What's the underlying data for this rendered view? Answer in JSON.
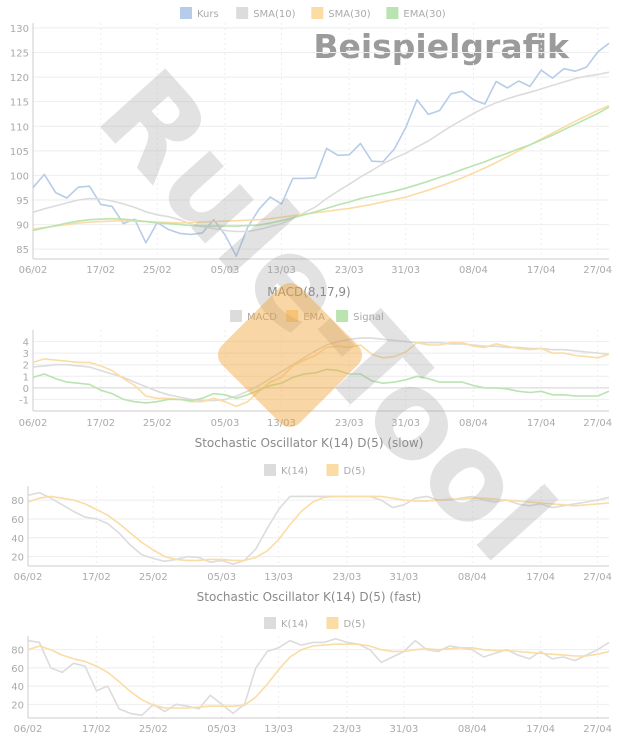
{
  "watermark": {
    "text": "Rule-Tool",
    "opacity": 0.35
  },
  "dates": [
    "06/02",
    "17/02",
    "25/02",
    "05/03",
    "13/03",
    "23/03",
    "31/03",
    "08/04",
    "17/04",
    "27/04"
  ],
  "colors": {
    "kurs": "#b7cce8",
    "sma10": "#dcdcdc",
    "sma30": "#fbdca5",
    "ema30": "#b9e4b0",
    "grid": "#eeeeee",
    "axis": "#cccccc",
    "tick": "#aaaaaa"
  },
  "chart_data": [
    {
      "type": "line",
      "title": "Beispielgrafik",
      "ylim": [
        83,
        131
      ],
      "yticks": [
        85,
        90,
        95,
        100,
        105,
        110,
        115,
        120,
        125,
        130
      ],
      "x_ticks": [
        "06/02",
        "17/02",
        "25/02",
        "05/03",
        "13/03",
        "23/03",
        "31/03",
        "08/04",
        "17/04",
        "27/04"
      ],
      "legend": "top-center",
      "series": [
        {
          "name": "Kurs",
          "color": "#b7cce8",
          "values": [
            97.5,
            100.2,
            96.5,
            95.4,
            97.6,
            97.8,
            94.1,
            93.7,
            90.2,
            91.1,
            86.3,
            90.4,
            89.0,
            88.2,
            88.0,
            88.3,
            91.0,
            87.9,
            83.6,
            89.4,
            93.1,
            95.6,
            94.2,
            99.4,
            99.4,
            99.5,
            105.5,
            104.1,
            104.2,
            106.5,
            102.9,
            102.8,
            105.4,
            109.7,
            115.4,
            112.4,
            113.2,
            116.6,
            117.1,
            115.4,
            114.5,
            119.1,
            117.8,
            119.2,
            118.1,
            121.4,
            119.8,
            121.7,
            121.2,
            122.0,
            125.1,
            126.9
          ]
        },
        {
          "name": "SMA(10)",
          "color": "#dcdcdc",
          "values": [
            92.5,
            93.2,
            93.8,
            94.4,
            95.0,
            95.3,
            95.2,
            94.8,
            94.2,
            93.5,
            92.6,
            92.0,
            91.6,
            91.0,
            90.1,
            89.6,
            89.2,
            88.8,
            88.6,
            88.6,
            89.0,
            89.6,
            90.2,
            91.2,
            92.4,
            93.6,
            95.3,
            96.8,
            98.2,
            99.7,
            101.0,
            102.4,
            103.5,
            104.5,
            105.8,
            107.0,
            108.5,
            110.0,
            111.3,
            112.6,
            113.8,
            114.8,
            115.6,
            116.3,
            116.9,
            117.6,
            118.3,
            119.0,
            119.7,
            120.2,
            120.5,
            121.0
          ]
        },
        {
          "name": "SMA(30)",
          "color": "#fbdca5",
          "values": [
            89.1,
            89.4,
            89.7,
            90.0,
            90.3,
            90.5,
            90.6,
            90.7,
            90.8,
            90.7,
            90.6,
            90.5,
            90.4,
            90.3,
            90.4,
            90.5,
            90.6,
            90.7,
            90.8,
            90.9,
            91.0,
            91.2,
            91.5,
            91.8,
            92.1,
            92.4,
            92.7,
            93.0,
            93.3,
            93.7,
            94.1,
            94.6,
            95.1,
            95.6,
            96.3,
            97.0,
            97.8,
            98.6,
            99.5,
            100.5,
            101.5,
            102.6,
            103.8,
            105.0,
            106.2,
            107.4,
            108.6,
            109.8,
            111.0,
            112.1,
            113.2,
            114.2
          ]
        },
        {
          "name": "EMA(30)",
          "color": "#b9e4b0",
          "values": [
            88.8,
            89.3,
            89.8,
            90.3,
            90.7,
            91.0,
            91.1,
            91.2,
            91.1,
            90.9,
            90.6,
            90.3,
            90.2,
            90.0,
            89.8,
            89.7,
            89.7,
            89.7,
            89.7,
            89.8,
            89.9,
            90.3,
            90.8,
            91.4,
            92.0,
            92.6,
            93.3,
            94.0,
            94.6,
            95.3,
            95.8,
            96.3,
            96.8,
            97.4,
            98.1,
            98.8,
            99.6,
            100.3,
            101.2,
            102.0,
            102.8,
            103.7,
            104.5,
            105.4,
            106.2,
            107.2,
            108.2,
            109.3,
            110.4,
            111.5,
            112.6,
            113.9
          ]
        }
      ]
    },
    {
      "type": "line",
      "title": "MACD(8,17,9)",
      "ylim": [
        -2,
        5
      ],
      "yticks": [
        -1,
        0,
        1,
        2,
        3,
        4
      ],
      "x_ticks": [
        "06/02",
        "17/02",
        "25/02",
        "05/03",
        "13/03",
        "23/03",
        "31/03",
        "08/04",
        "17/04",
        "27/04"
      ],
      "legend": "top-center",
      "series": [
        {
          "name": "MACD",
          "color": "#dcdcdc",
          "values": [
            1.8,
            1.9,
            2.0,
            2.0,
            1.9,
            1.8,
            1.5,
            1.2,
            0.9,
            0.5,
            0.1,
            -0.3,
            -0.6,
            -0.8,
            -1.0,
            -1.1,
            -1.1,
            -1.0,
            -0.7,
            -0.3,
            0.2,
            0.8,
            1.4,
            2.0,
            2.6,
            3.2,
            3.7,
            4.0,
            4.2,
            4.3,
            4.3,
            4.2,
            4.1,
            4.0,
            3.9,
            3.9,
            3.9,
            3.8,
            3.8,
            3.7,
            3.6,
            3.6,
            3.5,
            3.5,
            3.4,
            3.4,
            3.3,
            3.3,
            3.2,
            3.1,
            3.0,
            2.9
          ]
        },
        {
          "name": "EMA",
          "color": "#fbdca5",
          "values": [
            2.2,
            2.5,
            2.4,
            2.3,
            2.2,
            2.2,
            1.9,
            1.5,
            0.8,
            0.2,
            -0.7,
            -0.9,
            -0.9,
            -1.0,
            -1.2,
            -1.2,
            -0.9,
            -1.2,
            -1.6,
            -1.2,
            -0.3,
            0.5,
            0.9,
            1.9,
            2.4,
            2.8,
            3.5,
            3.6,
            3.5,
            3.7,
            2.9,
            2.6,
            2.7,
            3.1,
            3.9,
            3.7,
            3.7,
            3.9,
            3.9,
            3.6,
            3.5,
            3.8,
            3.6,
            3.4,
            3.3,
            3.4,
            3.0,
            3.0,
            2.8,
            2.7,
            2.6,
            2.9
          ]
        },
        {
          "name": "Signal",
          "color": "#b9e4b0",
          "values": [
            0.9,
            1.2,
            0.8,
            0.5,
            0.4,
            0.3,
            -0.2,
            -0.5,
            -1.0,
            -1.2,
            -1.3,
            -1.2,
            -1.0,
            -1.0,
            -1.1,
            -0.9,
            -0.5,
            -0.6,
            -0.9,
            -0.6,
            -0.2,
            0.2,
            0.4,
            0.9,
            1.2,
            1.3,
            1.6,
            1.5,
            1.2,
            1.2,
            0.6,
            0.4,
            0.5,
            0.7,
            1.0,
            0.8,
            0.5,
            0.5,
            0.5,
            0.2,
            0.0,
            0.0,
            -0.1,
            -0.3,
            -0.4,
            -0.3,
            -0.6,
            -0.6,
            -0.7,
            -0.7,
            -0.7,
            -0.3
          ]
        }
      ]
    },
    {
      "type": "line",
      "title": "Stochastic Oscillator K(14) D(5) (slow)",
      "ylim": [
        10,
        95
      ],
      "yticks": [
        20,
        40,
        60,
        80
      ],
      "x_ticks": [
        "06/02",
        "17/02",
        "25/02",
        "05/03",
        "13/03",
        "23/03",
        "31/03",
        "08/04",
        "17/04",
        "27/04"
      ],
      "legend": "top-center",
      "series": [
        {
          "name": "K(14)",
          "color": "#dcdcdc",
          "values": [
            85,
            88,
            82,
            75,
            68,
            62,
            60,
            55,
            45,
            32,
            22,
            18,
            15,
            17,
            20,
            19,
            14,
            16,
            12,
            16,
            28,
            50,
            70,
            84,
            84,
            84,
            84,
            84,
            84,
            84,
            84,
            80,
            72,
            75,
            82,
            84,
            80,
            80,
            82,
            84,
            80,
            78,
            80,
            76,
            74,
            76,
            72,
            74,
            76,
            78,
            80,
            83
          ]
        },
        {
          "name": "D(5)",
          "color": "#fbdca5",
          "values": [
            78,
            82,
            84,
            82,
            80,
            76,
            70,
            64,
            55,
            45,
            35,
            27,
            20,
            17,
            16,
            16,
            17,
            17,
            16,
            16,
            19,
            26,
            38,
            54,
            68,
            78,
            83,
            84,
            84,
            84,
            84,
            84,
            82,
            80,
            79,
            79,
            80,
            81,
            81,
            82,
            82,
            81,
            80,
            79,
            78,
            77,
            76,
            75,
            74,
            75,
            76,
            77
          ]
        }
      ]
    },
    {
      "type": "line",
      "title": "Stochastic Oscillator K(14) D(5) (fast)",
      "ylim": [
        5,
        95
      ],
      "yticks": [
        20,
        40,
        60,
        80
      ],
      "x_ticks": [
        "06/02",
        "17/02",
        "25/02",
        "05/03",
        "13/03",
        "23/03",
        "31/03",
        "08/04",
        "17/04",
        "27/04"
      ],
      "legend": "top-center",
      "series": [
        {
          "name": "K(14)",
          "color": "#dcdcdc",
          "values": [
            90,
            88,
            60,
            55,
            65,
            62,
            35,
            40,
            15,
            10,
            8,
            20,
            12,
            20,
            18,
            15,
            30,
            20,
            10,
            20,
            60,
            78,
            82,
            90,
            85,
            88,
            88,
            92,
            88,
            86,
            80,
            66,
            72,
            78,
            90,
            80,
            78,
            84,
            82,
            80,
            72,
            76,
            80,
            74,
            70,
            78,
            70,
            72,
            68,
            74,
            80,
            88
          ]
        },
        {
          "name": "D(5)",
          "color": "#fbdca5",
          "values": [
            80,
            84,
            80,
            74,
            70,
            67,
            62,
            55,
            45,
            34,
            25,
            19,
            16,
            16,
            16,
            17,
            18,
            18,
            18,
            19,
            28,
            42,
            58,
            72,
            80,
            84,
            85,
            86,
            86,
            86,
            84,
            80,
            78,
            78,
            80,
            81,
            80,
            81,
            82,
            82,
            80,
            79,
            79,
            78,
            77,
            76,
            75,
            74,
            73,
            73,
            75,
            78
          ]
        }
      ]
    }
  ]
}
